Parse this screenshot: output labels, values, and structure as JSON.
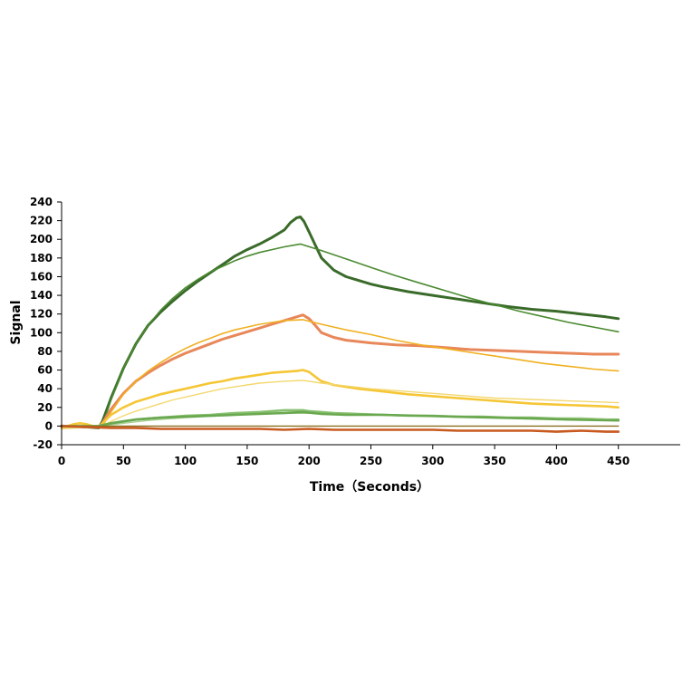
{
  "chart_data": {
    "type": "line",
    "xlabel": "Time（Seconds）",
    "ylabel": "Signal",
    "xlim": [
      0,
      500
    ],
    "ylim": [
      -20,
      240
    ],
    "x_ticks": [
      0,
      50,
      100,
      150,
      200,
      250,
      300,
      350,
      400,
      450
    ],
    "y_ticks": [
      -20,
      0,
      20,
      40,
      60,
      80,
      100,
      120,
      140,
      160,
      180,
      200,
      220,
      240
    ],
    "grid": false,
    "legend": "none",
    "series": [
      {
        "kind": "data",
        "color": "#3a6b2a",
        "width": 3,
        "x": [
          0,
          20,
          30,
          33,
          40,
          50,
          60,
          70,
          80,
          90,
          100,
          110,
          120,
          130,
          140,
          150,
          160,
          170,
          180,
          185,
          190,
          193,
          196,
          200,
          205,
          210,
          220,
          230,
          240,
          250,
          260,
          280,
          300,
          320,
          340,
          360,
          380,
          400,
          420,
          440,
          450
        ],
        "y": [
          0,
          -1,
          -2,
          5,
          30,
          62,
          88,
          108,
          122,
          134,
          145,
          155,
          164,
          173,
          182,
          189,
          195,
          202,
          210,
          218,
          223,
          224,
          219,
          208,
          194,
          180,
          167,
          160,
          156,
          152,
          149,
          144,
          140,
          136,
          132,
          128,
          125,
          123,
          120,
          117,
          115
        ]
      },
      {
        "kind": "fit",
        "color": "#4a8a30",
        "width": 1.6,
        "x": [
          33,
          40,
          50,
          60,
          70,
          80,
          90,
          100,
          110,
          120,
          130,
          140,
          150,
          160,
          170,
          180,
          193,
          210,
          230,
          250,
          270,
          290,
          310,
          330,
          350,
          370,
          390,
          410,
          430,
          450
        ],
        "y": [
          0,
          28,
          62,
          88,
          108,
          124,
          137,
          148,
          157,
          165,
          171,
          177,
          182,
          186,
          189,
          192,
          195,
          188,
          179,
          170,
          161,
          153,
          145,
          137,
          130,
          123,
          117,
          111,
          106,
          101
        ]
      },
      {
        "kind": "data",
        "color": "#e8875a",
        "width": 3,
        "x": [
          0,
          20,
          30,
          33,
          40,
          50,
          60,
          70,
          80,
          90,
          100,
          110,
          120,
          130,
          140,
          150,
          160,
          170,
          180,
          190,
          195,
          200,
          205,
          210,
          220,
          230,
          250,
          270,
          290,
          310,
          330,
          350,
          370,
          390,
          410,
          430,
          450
        ],
        "y": [
          0,
          -1,
          -1,
          3,
          18,
          35,
          48,
          57,
          65,
          72,
          78,
          83,
          88,
          93,
          97,
          101,
          105,
          109,
          113,
          117,
          119,
          115,
          108,
          100,
          95,
          92,
          89,
          87,
          86,
          84,
          82,
          81,
          80,
          79,
          78,
          77,
          77
        ]
      },
      {
        "kind": "fit",
        "color": "#f0b020",
        "width": 1.6,
        "x": [
          33,
          40,
          50,
          60,
          70,
          80,
          90,
          100,
          110,
          120,
          130,
          140,
          150,
          160,
          170,
          180,
          195,
          210,
          230,
          250,
          270,
          290,
          310,
          330,
          350,
          370,
          390,
          410,
          430,
          450
        ],
        "y": [
          0,
          15,
          34,
          48,
          59,
          68,
          76,
          83,
          89,
          94,
          99,
          103,
          106,
          109,
          111,
          113,
          114,
          109,
          103,
          98,
          92,
          87,
          83,
          79,
          75,
          71,
          67,
          64,
          61,
          59
        ]
      },
      {
        "kind": "data",
        "color": "#f5c635",
        "width": 2.6,
        "x": [
          0,
          10,
          15,
          20,
          25,
          30,
          33,
          40,
          50,
          60,
          70,
          80,
          90,
          100,
          110,
          120,
          130,
          140,
          150,
          160,
          170,
          180,
          190,
          195,
          200,
          205,
          210,
          220,
          240,
          260,
          280,
          300,
          320,
          340,
          360,
          380,
          400,
          420,
          440,
          450
        ],
        "y": [
          -2,
          2,
          3,
          2,
          0,
          -1,
          3,
          12,
          20,
          26,
          30,
          34,
          37,
          40,
          43,
          46,
          48,
          51,
          53,
          55,
          57,
          58,
          59,
          60,
          58,
          53,
          48,
          44,
          40,
          37,
          34,
          32,
          30,
          28,
          26,
          24,
          23,
          22,
          21,
          20
        ]
      },
      {
        "kind": "fit",
        "color": "#f3d870",
        "width": 1.4,
        "x": [
          0,
          33,
          40,
          50,
          60,
          70,
          80,
          90,
          100,
          110,
          120,
          130,
          140,
          150,
          160,
          170,
          180,
          195,
          210,
          230,
          250,
          270,
          290,
          310,
          330,
          350,
          370,
          390,
          410,
          430,
          450
        ],
        "y": [
          -3,
          0,
          5,
          11,
          16,
          20,
          24,
          28,
          31,
          34,
          37,
          40,
          42,
          44,
          46,
          47,
          48,
          49,
          46,
          43,
          40,
          38,
          36,
          34,
          32,
          30,
          29,
          28,
          27,
          26,
          25
        ]
      },
      {
        "kind": "data",
        "color": "#88c070",
        "width": 2.6,
        "x": [
          0,
          20,
          30,
          33,
          40,
          50,
          60,
          70,
          80,
          100,
          120,
          140,
          160,
          180,
          190,
          195,
          200,
          210,
          220,
          240,
          260,
          280,
          300,
          320,
          340,
          360,
          380,
          400,
          420,
          440,
          450
        ],
        "y": [
          0,
          -1,
          0,
          1,
          3,
          5,
          7,
          8,
          9,
          11,
          12,
          14,
          15,
          17,
          17,
          17,
          16,
          15,
          14,
          13,
          12,
          11,
          11,
          10,
          10,
          9,
          9,
          8,
          8,
          7,
          7
        ]
      },
      {
        "kind": "fit",
        "color": "#a8d090",
        "width": 1.4,
        "x": [
          0,
          33,
          50,
          70,
          100,
          130,
          160,
          195,
          220,
          250,
          280,
          310,
          340,
          370,
          400,
          430,
          450
        ],
        "y": [
          -1,
          0,
          3,
          6,
          9,
          11,
          13,
          14,
          13,
          12,
          11,
          10,
          9,
          9,
          8,
          8,
          7
        ]
      },
      {
        "kind": "data",
        "color": "#6aa850",
        "width": 2.6,
        "x": [
          0,
          30,
          33,
          40,
          50,
          60,
          80,
          100,
          120,
          140,
          160,
          180,
          195,
          210,
          230,
          260,
          290,
          320,
          350,
          380,
          410,
          450
        ],
        "y": [
          0,
          0,
          1,
          3,
          5,
          7,
          9,
          10,
          11,
          12,
          13,
          14,
          15,
          13,
          12,
          12,
          11,
          10,
          9,
          8,
          7,
          6
        ]
      },
      {
        "kind": "fit",
        "color": "#8a7020",
        "width": 1.4,
        "x": [
          0,
          450
        ],
        "y": [
          0,
          0
        ]
      },
      {
        "kind": "data",
        "color": "#c85a20",
        "width": 2.6,
        "x": [
          0,
          20,
          40,
          60,
          80,
          100,
          120,
          140,
          160,
          180,
          200,
          220,
          240,
          260,
          280,
          300,
          320,
          340,
          360,
          380,
          400,
          420,
          440,
          450
        ],
        "y": [
          0,
          -1,
          -2,
          -2,
          -3,
          -3,
          -3,
          -3,
          -3,
          -4,
          -3,
          -4,
          -4,
          -4,
          -4,
          -4,
          -5,
          -5,
          -5,
          -5,
          -6,
          -5,
          -6,
          -6
        ]
      }
    ]
  }
}
